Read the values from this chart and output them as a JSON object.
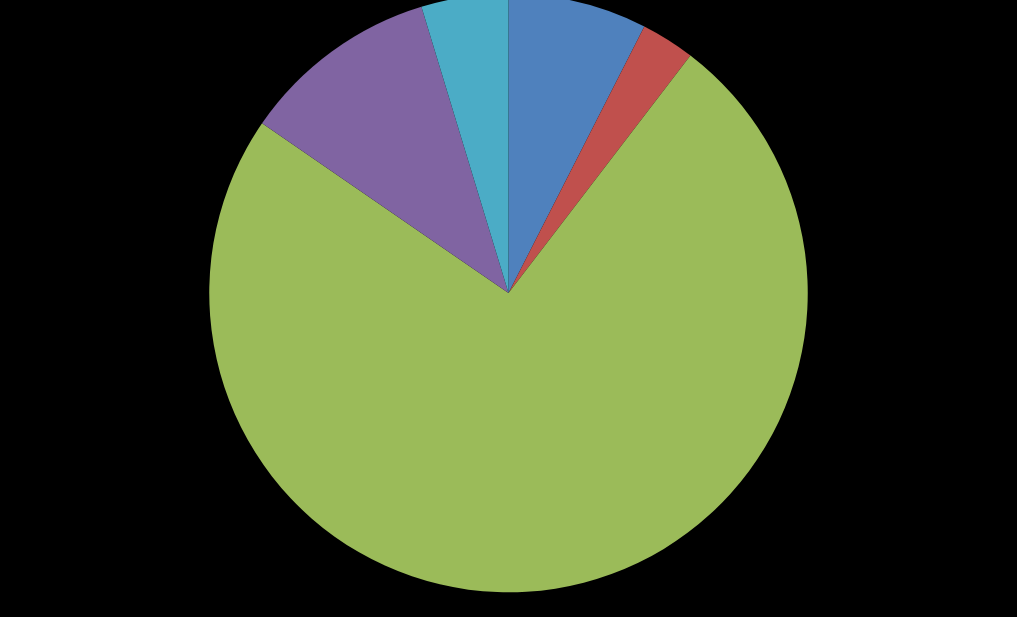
{
  "chart_data": {
    "type": "pie",
    "categories": [
      null,
      null,
      null,
      null,
      null
    ],
    "values": [
      7.5,
      2.9,
      74.2,
      10.7,
      4.7
    ],
    "colors": [
      "#4f81bd",
      "#c0504d",
      "#9bbb59",
      "#8064a2",
      "#4bacc6"
    ]
  }
}
